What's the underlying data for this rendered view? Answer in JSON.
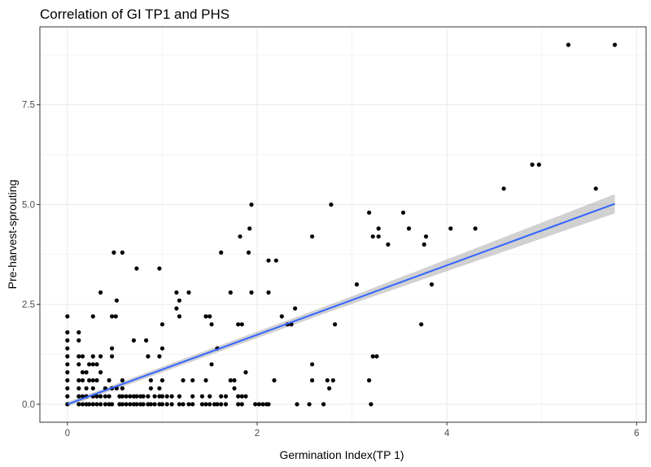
{
  "chart_data": {
    "type": "scatter",
    "title": "Correlation of GI TP1 and PHS",
    "xlabel": "Germination Index(TP 1)",
    "ylabel": "Pre-harvest-sprouting",
    "xlim": [
      -0.29,
      6.1
    ],
    "ylim": [
      -0.45,
      9.45
    ],
    "x_ticks": [
      0,
      2,
      4,
      6
    ],
    "x_tick_labels": [
      "0",
      "2",
      "4",
      "6"
    ],
    "y_ticks": [
      0.0,
      2.5,
      5.0,
      7.5
    ],
    "y_tick_labels": [
      "0.0",
      "2.5",
      "5.0",
      "7.5"
    ],
    "grid": true,
    "points": [
      [
        0,
        2.2
      ],
      [
        0,
        1.8
      ],
      [
        0,
        1.6
      ],
      [
        0,
        1.4
      ],
      [
        0,
        1.2
      ],
      [
        0,
        1.0
      ],
      [
        0,
        0.8
      ],
      [
        0,
        0.6
      ],
      [
        0,
        0.4
      ],
      [
        0,
        0.2
      ],
      [
        0,
        0
      ],
      [
        0.12,
        1.8
      ],
      [
        0.12,
        1.6
      ],
      [
        0.12,
        1.2
      ],
      [
        0.12,
        1.0
      ],
      [
        0.12,
        0.6
      ],
      [
        0.12,
        0.4
      ],
      [
        0.12,
        0.2
      ],
      [
        0.12,
        0
      ],
      [
        0.16,
        1.2
      ],
      [
        0.16,
        0.8
      ],
      [
        0.16,
        0.6
      ],
      [
        0.16,
        0.2
      ],
      [
        0.16,
        0
      ],
      [
        0.2,
        0.8
      ],
      [
        0.2,
        0.4
      ],
      [
        0.2,
        0.2
      ],
      [
        0.2,
        0
      ],
      [
        0.23,
        1.0
      ],
      [
        0.23,
        0.6
      ],
      [
        0.23,
        0
      ],
      [
        0.27,
        2.2
      ],
      [
        0.27,
        1.2
      ],
      [
        0.27,
        1.0
      ],
      [
        0.27,
        0.6
      ],
      [
        0.27,
        0.4
      ],
      [
        0.27,
        0.2
      ],
      [
        0.27,
        0
      ],
      [
        0.31,
        1.0
      ],
      [
        0.31,
        0.6
      ],
      [
        0.31,
        0.2
      ],
      [
        0.31,
        0
      ],
      [
        0.35,
        2.8
      ],
      [
        0.35,
        1.2
      ],
      [
        0.35,
        0.8
      ],
      [
        0.35,
        0.2
      ],
      [
        0.35,
        0
      ],
      [
        0.4,
        0.4
      ],
      [
        0.4,
        0.2
      ],
      [
        0.4,
        0
      ],
      [
        0.44,
        0.6
      ],
      [
        0.44,
        0.2
      ],
      [
        0.44,
        0
      ],
      [
        0.47,
        2.2
      ],
      [
        0.47,
        1.4
      ],
      [
        0.47,
        1.2
      ],
      [
        0.47,
        0.4
      ],
      [
        0.47,
        0
      ],
      [
        0.49,
        3.8
      ],
      [
        0.51,
        2.2
      ],
      [
        0.52,
        2.6
      ],
      [
        0.52,
        0.4
      ],
      [
        0.55,
        0.2
      ],
      [
        0.55,
        0
      ],
      [
        0.58,
        3.8
      ],
      [
        0.58,
        0.6
      ],
      [
        0.58,
        0.4
      ],
      [
        0.58,
        0.2
      ],
      [
        0.58,
        0
      ],
      [
        0.62,
        0.2
      ],
      [
        0.62,
        0
      ],
      [
        0.66,
        0.2
      ],
      [
        0.66,
        0
      ],
      [
        0.7,
        1.6
      ],
      [
        0.7,
        0.2
      ],
      [
        0.7,
        0
      ],
      [
        0.73,
        3.4
      ],
      [
        0.73,
        0.2
      ],
      [
        0.73,
        0
      ],
      [
        0.77,
        0.2
      ],
      [
        0.77,
        0
      ],
      [
        0.8,
        0.2
      ],
      [
        0.8,
        0
      ],
      [
        0.83,
        1.6
      ],
      [
        0.85,
        1.2
      ],
      [
        0.85,
        0.2
      ],
      [
        0.85,
        0
      ],
      [
        0.88,
        0.6
      ],
      [
        0.88,
        0.4
      ],
      [
        0.88,
        0
      ],
      [
        0.92,
        0.2
      ],
      [
        0.92,
        0
      ],
      [
        0.97,
        3.4
      ],
      [
        0.97,
        1.2
      ],
      [
        0.97,
        0.4
      ],
      [
        0.97,
        0.2
      ],
      [
        0.97,
        0
      ],
      [
        1.0,
        2.0
      ],
      [
        1.0,
        1.4
      ],
      [
        1.0,
        0.6
      ],
      [
        1.0,
        0.2
      ],
      [
        1.0,
        0
      ],
      [
        1.05,
        0.2
      ],
      [
        1.05,
        0
      ],
      [
        1.1,
        0.2
      ],
      [
        1.1,
        0
      ],
      [
        1.15,
        2.8
      ],
      [
        1.15,
        2.4
      ],
      [
        1.18,
        2.6
      ],
      [
        1.18,
        2.2
      ],
      [
        1.18,
        0.2
      ],
      [
        1.18,
        0
      ],
      [
        1.22,
        0.6
      ],
      [
        1.22,
        0
      ],
      [
        1.28,
        2.8
      ],
      [
        1.28,
        0
      ],
      [
        1.32,
        0.6
      ],
      [
        1.32,
        0.2
      ],
      [
        1.32,
        0
      ],
      [
        1.42,
        0.2
      ],
      [
        1.42,
        0
      ],
      [
        1.46,
        2.2
      ],
      [
        1.46,
        0.6
      ],
      [
        1.46,
        0
      ],
      [
        1.5,
        2.2
      ],
      [
        1.5,
        0.2
      ],
      [
        1.5,
        0
      ],
      [
        1.52,
        2.0
      ],
      [
        1.52,
        1.0
      ],
      [
        1.55,
        0
      ],
      [
        1.58,
        0
      ],
      [
        1.58,
        1.4
      ],
      [
        1.62,
        3.8
      ],
      [
        1.62,
        0.2
      ],
      [
        1.62,
        0
      ],
      [
        1.67,
        0.2
      ],
      [
        1.67,
        0
      ],
      [
        1.72,
        2.8
      ],
      [
        1.72,
        0.6
      ],
      [
        1.76,
        0.6
      ],
      [
        1.76,
        0.4
      ],
      [
        1.8,
        2.0
      ],
      [
        1.8,
        0.2
      ],
      [
        1.8,
        0
      ],
      [
        1.82,
        4.2
      ],
      [
        1.84,
        2.0
      ],
      [
        1.84,
        0.2
      ],
      [
        1.84,
        0
      ],
      [
        1.88,
        0.8
      ],
      [
        1.88,
        0.2
      ],
      [
        1.91,
        3.8
      ],
      [
        1.92,
        4.4
      ],
      [
        1.94,
        5.0
      ],
      [
        1.94,
        2.8
      ],
      [
        1.98,
        0
      ],
      [
        2.02,
        0
      ],
      [
        2.06,
        0
      ],
      [
        2.1,
        0
      ],
      [
        2.12,
        3.6
      ],
      [
        2.12,
        2.8
      ],
      [
        2.12,
        0
      ],
      [
        2.18,
        0.6
      ],
      [
        2.2,
        3.6
      ],
      [
        2.26,
        2.2
      ],
      [
        2.32,
        2.0
      ],
      [
        2.36,
        2.0
      ],
      [
        2.4,
        2.4
      ],
      [
        2.42,
        0
      ],
      [
        2.55,
        0
      ],
      [
        2.58,
        4.2
      ],
      [
        2.58,
        1.0
      ],
      [
        2.58,
        0.6
      ],
      [
        2.7,
        0
      ],
      [
        2.74,
        0.6
      ],
      [
        2.76,
        0.4
      ],
      [
        2.78,
        5.0
      ],
      [
        2.8,
        0.6
      ],
      [
        2.82,
        2.0
      ],
      [
        3.05,
        3.0
      ],
      [
        3.18,
        4.8
      ],
      [
        3.18,
        0.6
      ],
      [
        3.2,
        0
      ],
      [
        3.22,
        4.2
      ],
      [
        3.22,
        1.2
      ],
      [
        3.26,
        1.2
      ],
      [
        3.28,
        4.4
      ],
      [
        3.28,
        4.2
      ],
      [
        3.38,
        4.0
      ],
      [
        3.54,
        4.8
      ],
      [
        3.6,
        4.4
      ],
      [
        3.73,
        2.0
      ],
      [
        3.76,
        4.0
      ],
      [
        3.78,
        4.2
      ],
      [
        3.84,
        3.0
      ],
      [
        4.04,
        4.4
      ],
      [
        4.3,
        4.4
      ],
      [
        4.6,
        5.4
      ],
      [
        4.9,
        6.0
      ],
      [
        4.97,
        6.0
      ],
      [
        5.28,
        9.0
      ],
      [
        5.57,
        5.4
      ],
      [
        5.77,
        9.0
      ]
    ],
    "trend": {
      "x0": 0,
      "y0": 0,
      "x1": 5.77,
      "y1": 5.02,
      "se_lower_end": 4.78,
      "se_upper_end": 5.26
    },
    "colors": {
      "points": "#000000",
      "trend_line": "#3366ff",
      "ribbon": "#999999",
      "grid": "#ebebeb",
      "panel_border": "#333333"
    }
  }
}
